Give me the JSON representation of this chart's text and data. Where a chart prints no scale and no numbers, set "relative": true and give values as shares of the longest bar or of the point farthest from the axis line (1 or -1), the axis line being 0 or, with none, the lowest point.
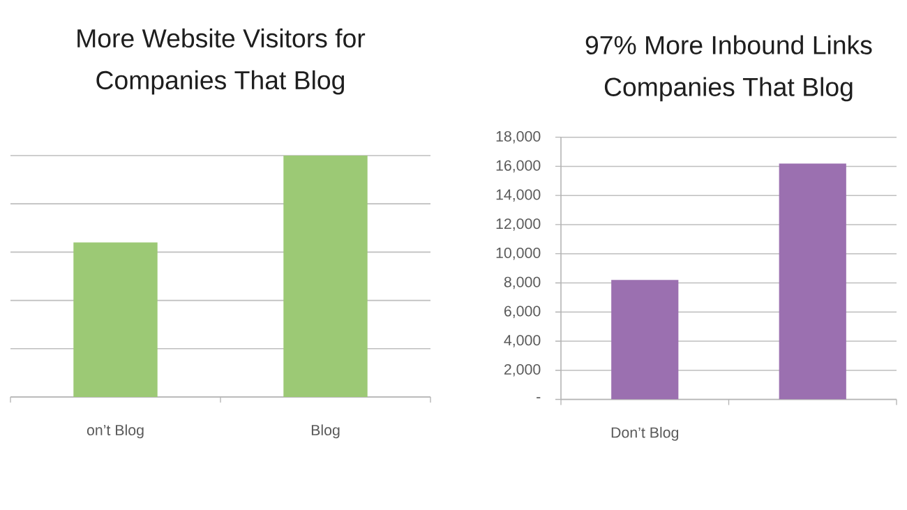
{
  "chart_data": [
    {
      "type": "bar",
      "title": "More Website Visitors for Companies That Blog",
      "categories": [
        "on’t Blog",
        "Blog"
      ],
      "values": [
        0.64,
        1
      ],
      "color": "#9cc975",
      "relative": true,
      "grid": "y"
    },
    {
      "type": "bar",
      "title": "97% More Inbound Links Companies That Blog",
      "categories": [
        "Don’t Blog",
        null
      ],
      "values": [
        8200,
        16200
      ],
      "color": "#9b70b0",
      "ylim": [
        0,
        18000
      ],
      "yticks": [
        {
          "value": 0,
          "label": "-"
        },
        {
          "value": 2000,
          "label": "2,000"
        },
        {
          "value": 4000,
          "label": "4,000"
        },
        {
          "value": 6000,
          "label": "6,000"
        },
        {
          "value": 8000,
          "label": "8,000"
        },
        {
          "value": 10000,
          "label": "10,000"
        },
        {
          "value": 12000,
          "label": "12,000"
        },
        {
          "value": 14000,
          "label": "14,000"
        },
        {
          "value": 16000,
          "label": "16,000"
        },
        {
          "value": 18000,
          "label": "18,000"
        }
      ],
      "grid": "y"
    }
  ]
}
